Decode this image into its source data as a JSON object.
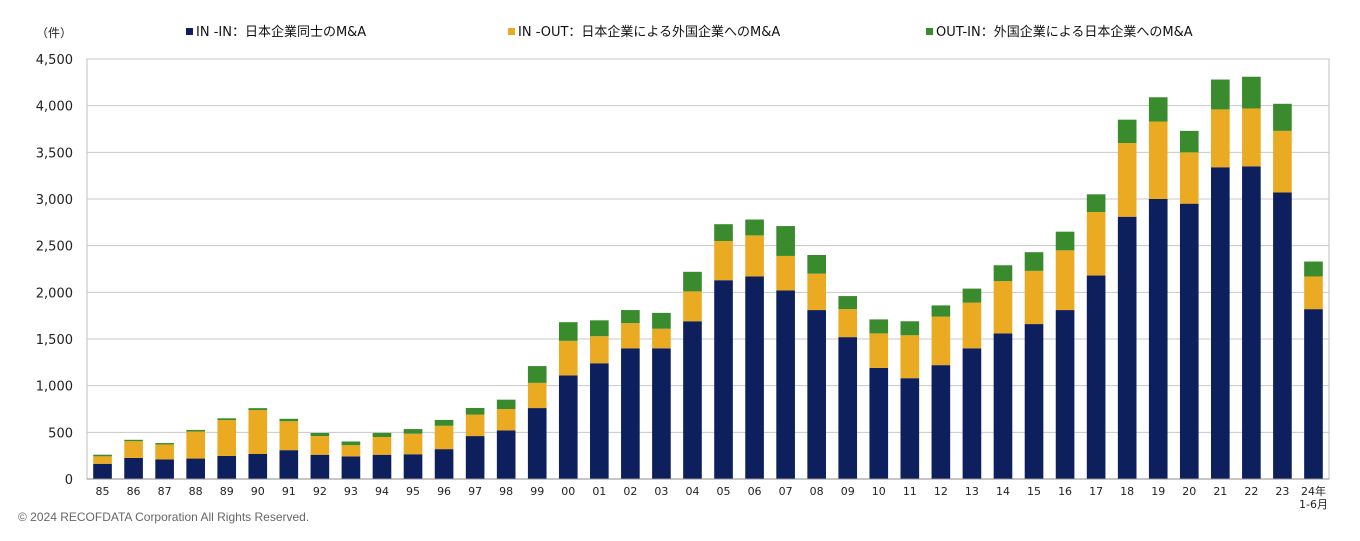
{
  "chart_data": {
    "type": "bar",
    "stacked": true,
    "unit_label": "（件）",
    "categories": [
      "85",
      "86",
      "87",
      "88",
      "89",
      "90",
      "91",
      "92",
      "93",
      "94",
      "95",
      "96",
      "97",
      "98",
      "99",
      "00",
      "01",
      "02",
      "03",
      "04",
      "05",
      "06",
      "07",
      "08",
      "09",
      "10",
      "11",
      "12",
      "13",
      "14",
      "15",
      "16",
      "17",
      "18",
      "19",
      "20",
      "21",
      "22",
      "23",
      "24年\n1-6月"
    ],
    "series": [
      {
        "name": "IN -IN：日本企業同士のM&A",
        "color": "#0d1f5c",
        "values": [
          163,
          226,
          210,
          219,
          247,
          268,
          309,
          260,
          242,
          260,
          265,
          320,
          460,
          520,
          760,
          1110,
          1240,
          1400,
          1400,
          1690,
          2130,
          2170,
          2020,
          1810,
          1520,
          1190,
          1080,
          1220,
          1400,
          1560,
          1660,
          1810,
          2180,
          2810,
          3000,
          2950,
          3340,
          3350,
          3070,
          1820
        ]
      },
      {
        "name": "IN -OUT：日本企業による外国企業へのM&A",
        "color": "#eaaa22",
        "values": [
          80,
          179,
          160,
          290,
          385,
          470,
          310,
          200,
          120,
          190,
          220,
          250,
          230,
          230,
          270,
          370,
          290,
          270,
          210,
          320,
          420,
          440,
          370,
          390,
          300,
          370,
          460,
          520,
          490,
          560,
          570,
          640,
          680,
          790,
          830,
          550,
          620,
          620,
          660,
          350
        ]
      },
      {
        "name": "OUT-IN：外国企業による日本企業へのM&A",
        "color": "#3a8a2e",
        "values": [
          17,
          15,
          15,
          17,
          18,
          21,
          26,
          33,
          40,
          44,
          50,
          63,
          71,
          100,
          180,
          200,
          170,
          140,
          170,
          210,
          180,
          170,
          320,
          200,
          140,
          150,
          150,
          120,
          150,
          170,
          200,
          200,
          190,
          250,
          260,
          230,
          320,
          340,
          290,
          160
        ]
      }
    ],
    "yticks": [
      0,
      500,
      1000,
      1500,
      2000,
      2500,
      3000,
      3500,
      4000,
      4500
    ],
    "ylim": [
      0,
      4500
    ],
    "grid": true,
    "legend_position": "top"
  },
  "copyright": "© 2024  RECOFDATA Corporation All Rights Reserved."
}
